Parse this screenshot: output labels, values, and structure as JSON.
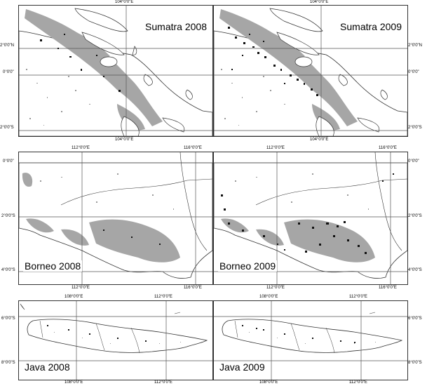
{
  "colors": {
    "forest": "#a6a6a6",
    "hotspot": "#111111",
    "line": "#333333",
    "grid": "#555555",
    "background": "#ffffff"
  },
  "panels": [
    {
      "key": "sumatra2008",
      "title": "Sumatra 2008",
      "ticks": {
        "top": [
          "104°0'0\"E"
        ],
        "bottom": [
          "104°0'0\"E"
        ],
        "left": [
          "2°0'0\"N",
          "0°0'0\"",
          "2°0'0\"S"
        ],
        "right": []
      }
    },
    {
      "key": "sumatra2009",
      "title": "Sumatra 2009",
      "ticks": {
        "top": [
          "104°0'0\"E"
        ],
        "bottom": [
          "104°0'0\"E"
        ],
        "left": [],
        "right": [
          "2°0'0\"N",
          "0°0'0\"",
          "2°0'0\"S"
        ]
      }
    },
    {
      "key": "borneo2008",
      "title": "Borneo 2008",
      "ticks": {
        "top": [
          "112°0'0\"E",
          "116°0'0\"E"
        ],
        "bottom": [
          "112°0'0\"E",
          "116°0'0\"E"
        ],
        "left": [
          "0°0'0\"",
          "2°0'0\"S",
          "4°0'0\"S"
        ],
        "right": []
      }
    },
    {
      "key": "borneo2009",
      "title": "Borneo 2009",
      "ticks": {
        "top": [
          "112°0'0\"E",
          "116°0'0\"E"
        ],
        "bottom": [
          "112°0'0\"E",
          "116°0'0\"E"
        ],
        "left": [],
        "right": [
          "0°0'0\"",
          "2°0'0\"S",
          "4°0'0\"S"
        ]
      }
    },
    {
      "key": "java2008",
      "title": "Java 2008",
      "ticks": {
        "top": [
          "108°0'0\"E",
          "112°0'0\"E"
        ],
        "bottom": [
          "108°0'0\"E",
          "112°0'0\"E"
        ],
        "left": [
          "6°0'0\"S",
          "8°0'0\"S"
        ],
        "right": []
      }
    },
    {
      "key": "java2009",
      "title": "Java 2009",
      "ticks": {
        "top": [
          "108°0'0\"E",
          "112°0'0\"E"
        ],
        "bottom": [
          "108°0'0\"E",
          "112°0'0\"E"
        ],
        "left": [],
        "right": [
          "6°0'0\"S",
          "8°0'0\"S"
        ]
      }
    }
  ]
}
